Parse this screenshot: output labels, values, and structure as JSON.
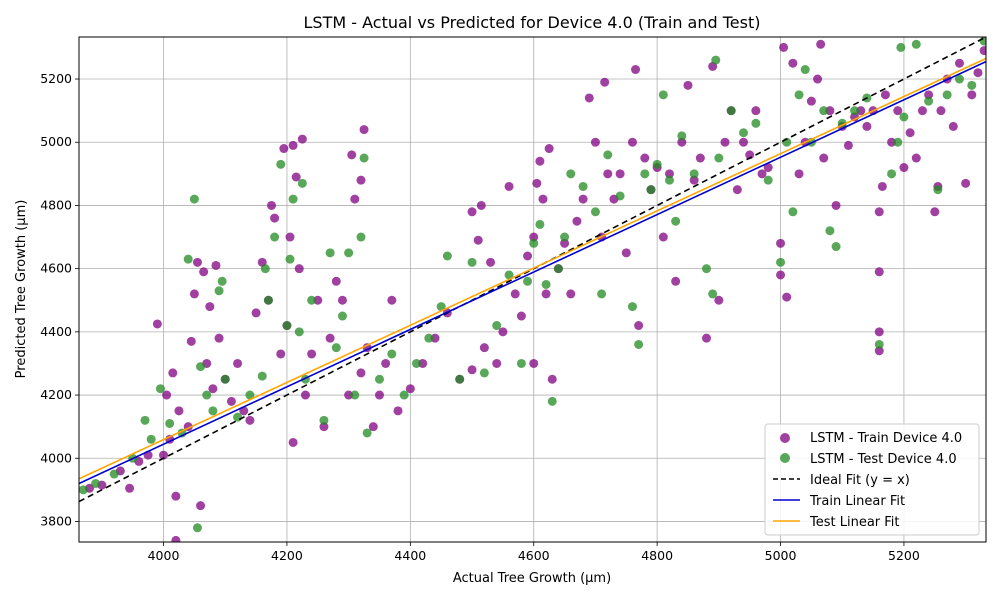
{
  "chart_data": {
    "type": "scatter",
    "title": "LSTM - Actual vs Predicted for Device 4.0 (Train and Test)",
    "xlabel": "Actual Tree Growth (μm)",
    "ylabel": "Predicted Tree Growth (μm)",
    "xlim": [
      3863,
      5333
    ],
    "ylim": [
      3735,
      5333
    ],
    "x_ticks": [
      4000,
      4200,
      4400,
      4600,
      4800,
      5000,
      5200
    ],
    "y_ticks": [
      3800,
      4000,
      4200,
      4400,
      4600,
      4800,
      5000,
      5200
    ],
    "grid": true,
    "legend_position": "bottom-right",
    "legend": [
      "LSTM - Train Device 4.0",
      "LSTM - Test Device 4.0",
      "Ideal Fit (y = x)",
      "Train Linear Fit",
      "Test Linear Fit"
    ],
    "colors": {
      "train": "#800080",
      "test": "#228b22",
      "ideal": "#000000",
      "train_fit": "#0000cd",
      "test_fit": "#ffa500"
    },
    "ideal_fit": {
      "slope": 1.0,
      "intercept": 0
    },
    "train_fit": {
      "x": [
        3863,
        5333
      ],
      "y": [
        3920,
        5255
      ]
    },
    "test_fit": {
      "x": [
        3863,
        5333
      ],
      "y": [
        3935,
        5265
      ]
    },
    "series": [
      {
        "name": "LSTM - Train Device 4.0",
        "points": [
          [
            3880,
            3905
          ],
          [
            3900,
            3915
          ],
          [
            3930,
            3960
          ],
          [
            3945,
            3905
          ],
          [
            3960,
            3990
          ],
          [
            3975,
            4010
          ],
          [
            3990,
            4425
          ],
          [
            4000,
            4010
          ],
          [
            4005,
            4200
          ],
          [
            4010,
            4060
          ],
          [
            4015,
            4270
          ],
          [
            4020,
            3740
          ],
          [
            4020,
            3880
          ],
          [
            4025,
            4150
          ],
          [
            4040,
            4100
          ],
          [
            4045,
            4370
          ],
          [
            4050,
            4520
          ],
          [
            4055,
            4620
          ],
          [
            4060,
            3850
          ],
          [
            4065,
            4590
          ],
          [
            4070,
            4300
          ],
          [
            4075,
            4480
          ],
          [
            4080,
            4220
          ],
          [
            4085,
            4610
          ],
          [
            4090,
            4380
          ],
          [
            4100,
            4250
          ],
          [
            4110,
            4180
          ],
          [
            4120,
            4300
          ],
          [
            4130,
            4150
          ],
          [
            4140,
            4120
          ],
          [
            4150,
            4460
          ],
          [
            4160,
            4620
          ],
          [
            4170,
            4500
          ],
          [
            4175,
            4800
          ],
          [
            4180,
            4760
          ],
          [
            4190,
            4330
          ],
          [
            4195,
            4980
          ],
          [
            4200,
            4420
          ],
          [
            4205,
            4700
          ],
          [
            4210,
            4050
          ],
          [
            4210,
            4990
          ],
          [
            4215,
            4890
          ],
          [
            4220,
            4600
          ],
          [
            4225,
            5010
          ],
          [
            4230,
            4200
          ],
          [
            4240,
            4330
          ],
          [
            4250,
            4500
          ],
          [
            4260,
            4100
          ],
          [
            4270,
            4380
          ],
          [
            4280,
            4560
          ],
          [
            4290,
            4500
          ],
          [
            4300,
            4200
          ],
          [
            4305,
            4960
          ],
          [
            4310,
            4820
          ],
          [
            4320,
            4270
          ],
          [
            4320,
            4880
          ],
          [
            4325,
            5040
          ],
          [
            4330,
            4350
          ],
          [
            4340,
            4100
          ],
          [
            4350,
            4200
          ],
          [
            4360,
            4300
          ],
          [
            4370,
            4500
          ],
          [
            4380,
            4150
          ],
          [
            4400,
            4220
          ],
          [
            4420,
            4300
          ],
          [
            4440,
            4380
          ],
          [
            4460,
            4460
          ],
          [
            4480,
            4250
          ],
          [
            4500,
            4780
          ],
          [
            4500,
            4280
          ],
          [
            4510,
            4690
          ],
          [
            4515,
            4800
          ],
          [
            4520,
            4350
          ],
          [
            4530,
            4620
          ],
          [
            4540,
            4300
          ],
          [
            4550,
            4400
          ],
          [
            4560,
            4860
          ],
          [
            4570,
            4520
          ],
          [
            4580,
            4450
          ],
          [
            4590,
            4640
          ],
          [
            4600,
            4700
          ],
          [
            4600,
            4300
          ],
          [
            4605,
            4870
          ],
          [
            4610,
            4940
          ],
          [
            4615,
            4820
          ],
          [
            4620,
            4520
          ],
          [
            4625,
            4980
          ],
          [
            4630,
            4250
          ],
          [
            4640,
            4600
          ],
          [
            4650,
            4680
          ],
          [
            4660,
            4520
          ],
          [
            4670,
            4750
          ],
          [
            4680,
            4820
          ],
          [
            4690,
            5140
          ],
          [
            4700,
            5000
          ],
          [
            4710,
            4700
          ],
          [
            4715,
            5190
          ],
          [
            4720,
            4900
          ],
          [
            4730,
            4820
          ],
          [
            4740,
            4900
          ],
          [
            4750,
            4650
          ],
          [
            4760,
            5000
          ],
          [
            4765,
            5230
          ],
          [
            4770,
            4420
          ],
          [
            4780,
            4950
          ],
          [
            4790,
            4850
          ],
          [
            4800,
            4920
          ],
          [
            4810,
            4700
          ],
          [
            4820,
            4900
          ],
          [
            4830,
            4560
          ],
          [
            4840,
            5000
          ],
          [
            4850,
            5180
          ],
          [
            4860,
            4880
          ],
          [
            4870,
            4950
          ],
          [
            4880,
            4380
          ],
          [
            4890,
            5240
          ],
          [
            4900,
            4500
          ],
          [
            4910,
            5000
          ],
          [
            4920,
            5100
          ],
          [
            4930,
            4850
          ],
          [
            4940,
            5000
          ],
          [
            4950,
            4960
          ],
          [
            4960,
            5100
          ],
          [
            4970,
            4900
          ],
          [
            4980,
            4920
          ],
          [
            5000,
            4680
          ],
          [
            5000,
            4580
          ],
          [
            5005,
            5300
          ],
          [
            5010,
            4510
          ],
          [
            5020,
            5250
          ],
          [
            5030,
            4900
          ],
          [
            5040,
            5000
          ],
          [
            5050,
            5130
          ],
          [
            5060,
            5200
          ],
          [
            5065,
            5310
          ],
          [
            5070,
            4950
          ],
          [
            5080,
            5100
          ],
          [
            5090,
            4800
          ],
          [
            5100,
            5050
          ],
          [
            5110,
            4990
          ],
          [
            5120,
            5080
          ],
          [
            5130,
            5100
          ],
          [
            5140,
            5050
          ],
          [
            5150,
            5100
          ],
          [
            5160,
            4340
          ],
          [
            5160,
            4400
          ],
          [
            5160,
            4590
          ],
          [
            5160,
            4780
          ],
          [
            5165,
            4860
          ],
          [
            5170,
            5150
          ],
          [
            5180,
            5000
          ],
          [
            5190,
            5100
          ],
          [
            5200,
            4920
          ],
          [
            5210,
            5030
          ],
          [
            5220,
            4950
          ],
          [
            5230,
            5100
          ],
          [
            5240,
            5150
          ],
          [
            5250,
            4780
          ],
          [
            5255,
            4860
          ],
          [
            5260,
            5100
          ],
          [
            5270,
            5200
          ],
          [
            5280,
            5050
          ],
          [
            5290,
            5250
          ],
          [
            5300,
            4870
          ],
          [
            5310,
            5150
          ],
          [
            5320,
            5220
          ],
          [
            5330,
            5290
          ]
        ]
      },
      {
        "name": "LSTM - Test Device 4.0",
        "points": [
          [
            3870,
            3900
          ],
          [
            3890,
            3920
          ],
          [
            3920,
            3950
          ],
          [
            3950,
            4000
          ],
          [
            3970,
            4120
          ],
          [
            3980,
            4060
          ],
          [
            3995,
            4220
          ],
          [
            4010,
            4110
          ],
          [
            4030,
            4080
          ],
          [
            4040,
            4630
          ],
          [
            4050,
            4820
          ],
          [
            4055,
            3780
          ],
          [
            4060,
            4290
          ],
          [
            4070,
            4200
          ],
          [
            4080,
            4150
          ],
          [
            4090,
            4530
          ],
          [
            4095,
            4560
          ],
          [
            4100,
            4250
          ],
          [
            4120,
            4130
          ],
          [
            4140,
            4200
          ],
          [
            4160,
            4260
          ],
          [
            4165,
            4600
          ],
          [
            4170,
            4500
          ],
          [
            4180,
            4700
          ],
          [
            4190,
            4930
          ],
          [
            4200,
            4420
          ],
          [
            4205,
            4630
          ],
          [
            4210,
            4820
          ],
          [
            4220,
            4400
          ],
          [
            4225,
            4870
          ],
          [
            4230,
            4250
          ],
          [
            4240,
            4500
          ],
          [
            4260,
            4120
          ],
          [
            4270,
            4650
          ],
          [
            4280,
            4350
          ],
          [
            4290,
            4450
          ],
          [
            4300,
            4650
          ],
          [
            4310,
            4200
          ],
          [
            4320,
            4700
          ],
          [
            4325,
            4950
          ],
          [
            4330,
            4080
          ],
          [
            4350,
            4250
          ],
          [
            4370,
            4330
          ],
          [
            4390,
            4200
          ],
          [
            4410,
            4300
          ],
          [
            4430,
            4380
          ],
          [
            4450,
            4480
          ],
          [
            4460,
            4640
          ],
          [
            4480,
            4250
          ],
          [
            4500,
            4620
          ],
          [
            4520,
            4270
          ],
          [
            4540,
            4420
          ],
          [
            4560,
            4580
          ],
          [
            4580,
            4300
          ],
          [
            4590,
            4560
          ],
          [
            4600,
            4680
          ],
          [
            4610,
            4740
          ],
          [
            4620,
            4550
          ],
          [
            4630,
            4180
          ],
          [
            4640,
            4600
          ],
          [
            4650,
            4700
          ],
          [
            4660,
            4900
          ],
          [
            4680,
            4860
          ],
          [
            4700,
            4780
          ],
          [
            4710,
            4520
          ],
          [
            4720,
            4960
          ],
          [
            4740,
            4830
          ],
          [
            4760,
            4480
          ],
          [
            4770,
            4360
          ],
          [
            4780,
            4900
          ],
          [
            4790,
            4850
          ],
          [
            4800,
            4930
          ],
          [
            4810,
            5150
          ],
          [
            4820,
            4880
          ],
          [
            4830,
            4750
          ],
          [
            4840,
            5020
          ],
          [
            4860,
            4900
          ],
          [
            4880,
            4600
          ],
          [
            4890,
            4520
          ],
          [
            4895,
            5260
          ],
          [
            4900,
            4950
          ],
          [
            4920,
            5100
          ],
          [
            4940,
            5030
          ],
          [
            4960,
            5060
          ],
          [
            4980,
            4880
          ],
          [
            5000,
            4620
          ],
          [
            5010,
            5000
          ],
          [
            5020,
            4780
          ],
          [
            5030,
            5150
          ],
          [
            5040,
            5230
          ],
          [
            5050,
            5000
          ],
          [
            5070,
            5100
          ],
          [
            5080,
            4720
          ],
          [
            5090,
            4670
          ],
          [
            5100,
            5060
          ],
          [
            5120,
            5100
          ],
          [
            5140,
            5140
          ],
          [
            5160,
            4360
          ],
          [
            5180,
            4900
          ],
          [
            5190,
            5000
          ],
          [
            5195,
            5300
          ],
          [
            5200,
            5080
          ],
          [
            5220,
            5310
          ],
          [
            5240,
            5130
          ],
          [
            5255,
            4850
          ],
          [
            5270,
            5150
          ],
          [
            5290,
            5200
          ],
          [
            5310,
            5180
          ],
          [
            5330,
            5320
          ]
        ]
      }
    ]
  }
}
